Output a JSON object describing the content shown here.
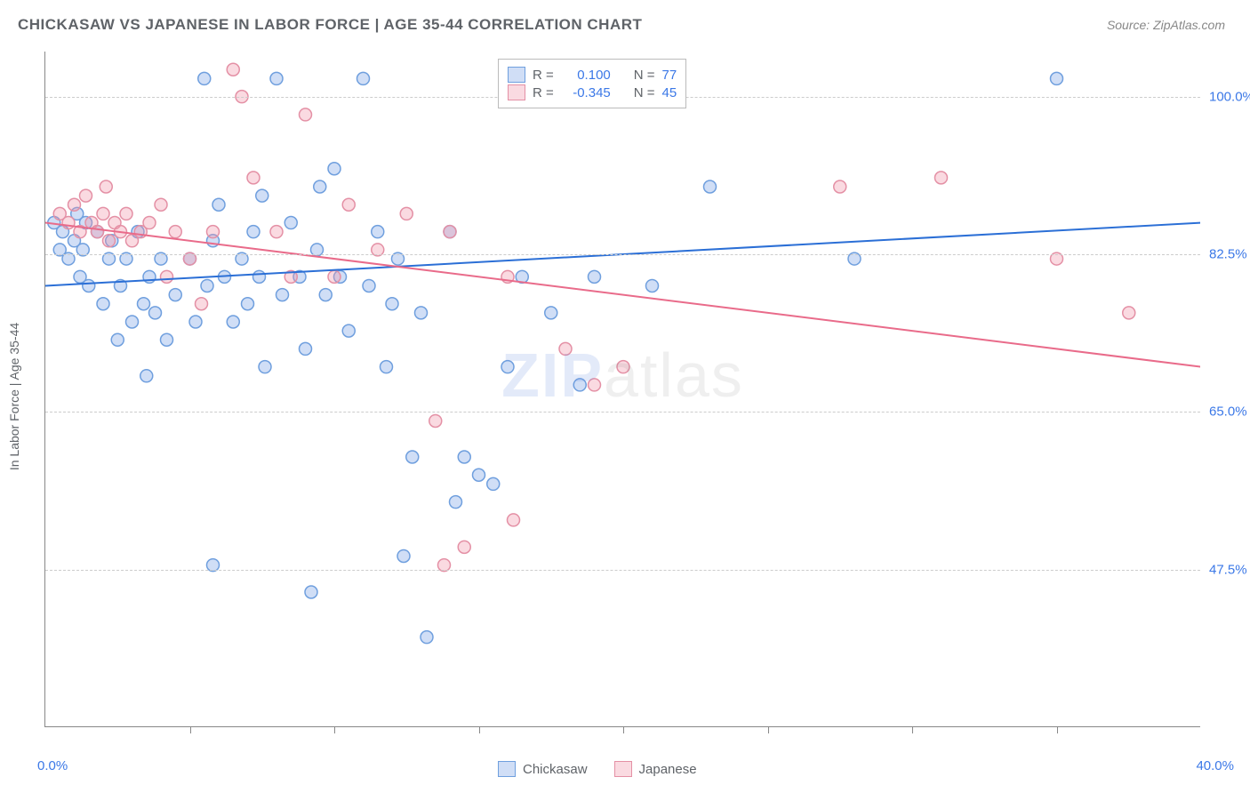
{
  "title": "CHICKASAW VS JAPANESE IN LABOR FORCE | AGE 35-44 CORRELATION CHART",
  "source": "Source: ZipAtlas.com",
  "y_axis_label": "In Labor Force | Age 35-44",
  "watermark_parts": {
    "zip": "ZIP",
    "atlas": "atlas"
  },
  "chart": {
    "type": "scatter",
    "xlim": [
      0.0,
      40.0
    ],
    "ylim": [
      30.0,
      105.0
    ],
    "x_axis_label_left": "0.0%",
    "x_axis_label_right": "40.0%",
    "y_ticks": [
      47.5,
      65.0,
      82.5,
      100.0
    ],
    "y_tick_labels": [
      "47.5%",
      "65.0%",
      "82.5%",
      "100.0%"
    ],
    "x_minor_ticks": [
      5,
      10,
      15,
      20,
      25,
      30,
      35
    ],
    "grid_color": "#cccccc",
    "background_color": "#ffffff",
    "marker_radius": 7,
    "marker_stroke_width": 1.5,
    "line_width": 2,
    "series": [
      {
        "name": "Chickasaw",
        "fill_color": "rgba(120,160,230,0.35)",
        "stroke_color": "#6f9fde",
        "line_color": "#2b6fd6",
        "R": "0.100",
        "N": "77",
        "regression": {
          "x1": 0,
          "y1": 79.0,
          "x2": 40,
          "y2": 86.0
        },
        "points": [
          [
            0.3,
            86
          ],
          [
            0.5,
            83
          ],
          [
            0.6,
            85
          ],
          [
            0.8,
            82
          ],
          [
            1.0,
            84
          ],
          [
            1.1,
            87
          ],
          [
            1.2,
            80
          ],
          [
            1.3,
            83
          ],
          [
            1.4,
            86
          ],
          [
            1.5,
            79
          ],
          [
            1.8,
            85
          ],
          [
            2.0,
            77
          ],
          [
            2.2,
            82
          ],
          [
            2.3,
            84
          ],
          [
            2.5,
            73
          ],
          [
            2.6,
            79
          ],
          [
            2.8,
            82
          ],
          [
            3.0,
            75
          ],
          [
            3.2,
            85
          ],
          [
            3.4,
            77
          ],
          [
            3.5,
            69
          ],
          [
            3.6,
            80
          ],
          [
            3.8,
            76
          ],
          [
            4.0,
            82
          ],
          [
            4.2,
            73
          ],
          [
            4.5,
            78
          ],
          [
            5.0,
            82
          ],
          [
            5.2,
            75
          ],
          [
            5.5,
            102
          ],
          [
            5.6,
            79
          ],
          [
            5.8,
            84
          ],
          [
            6.0,
            88
          ],
          [
            6.2,
            80
          ],
          [
            6.5,
            75
          ],
          [
            6.8,
            82
          ],
          [
            7.0,
            77
          ],
          [
            7.2,
            85
          ],
          [
            7.4,
            80
          ],
          [
            7.5,
            89
          ],
          [
            7.6,
            70
          ],
          [
            8.0,
            102
          ],
          [
            8.2,
            78
          ],
          [
            8.5,
            86
          ],
          [
            8.8,
            80
          ],
          [
            9.0,
            72
          ],
          [
            9.2,
            45
          ],
          [
            9.4,
            83
          ],
          [
            9.5,
            90
          ],
          [
            9.7,
            78
          ],
          [
            10.0,
            92
          ],
          [
            10.2,
            80
          ],
          [
            10.5,
            74
          ],
          [
            11.0,
            102
          ],
          [
            11.2,
            79
          ],
          [
            11.5,
            85
          ],
          [
            11.8,
            70
          ],
          [
            12.0,
            77
          ],
          [
            12.2,
            82
          ],
          [
            12.4,
            49
          ],
          [
            12.7,
            60
          ],
          [
            13.0,
            76
          ],
          [
            13.2,
            40
          ],
          [
            14.0,
            85
          ],
          [
            14.2,
            55
          ],
          [
            14.5,
            60
          ],
          [
            15.0,
            58
          ],
          [
            15.5,
            57
          ],
          [
            16.0,
            70
          ],
          [
            16.5,
            80
          ],
          [
            17.5,
            76
          ],
          [
            18.5,
            68
          ],
          [
            19.0,
            80
          ],
          [
            21.0,
            79
          ],
          [
            23.0,
            90
          ],
          [
            28.0,
            82
          ],
          [
            35.0,
            102
          ],
          [
            5.8,
            48
          ]
        ]
      },
      {
        "name": "Japanese",
        "fill_color": "rgba(240,150,170,0.35)",
        "stroke_color": "#e490a5",
        "line_color": "#e96b8a",
        "R": "-0.345",
        "N": "45",
        "regression": {
          "x1": 0,
          "y1": 86.0,
          "x2": 40,
          "y2": 70.0
        },
        "points": [
          [
            0.5,
            87
          ],
          [
            0.8,
            86
          ],
          [
            1.0,
            88
          ],
          [
            1.2,
            85
          ],
          [
            1.4,
            89
          ],
          [
            1.6,
            86
          ],
          [
            1.8,
            85
          ],
          [
            2.0,
            87
          ],
          [
            2.1,
            90
          ],
          [
            2.2,
            84
          ],
          [
            2.4,
            86
          ],
          [
            2.6,
            85
          ],
          [
            2.8,
            87
          ],
          [
            3.0,
            84
          ],
          [
            3.3,
            85
          ],
          [
            3.6,
            86
          ],
          [
            4.0,
            88
          ],
          [
            4.2,
            80
          ],
          [
            4.5,
            85
          ],
          [
            5.0,
            82
          ],
          [
            5.4,
            77
          ],
          [
            5.8,
            85
          ],
          [
            6.5,
            103
          ],
          [
            6.8,
            100
          ],
          [
            7.2,
            91
          ],
          [
            8.0,
            85
          ],
          [
            8.5,
            80
          ],
          [
            9.0,
            98
          ],
          [
            10.0,
            80
          ],
          [
            10.5,
            88
          ],
          [
            11.5,
            83
          ],
          [
            12.5,
            87
          ],
          [
            13.5,
            64
          ],
          [
            13.8,
            48
          ],
          [
            14.0,
            85
          ],
          [
            14.5,
            50
          ],
          [
            16.0,
            80
          ],
          [
            16.2,
            53
          ],
          [
            18.0,
            72
          ],
          [
            19.0,
            68
          ],
          [
            20.0,
            70
          ],
          [
            27.5,
            90
          ],
          [
            31.0,
            91
          ],
          [
            35.0,
            82
          ],
          [
            37.5,
            76
          ]
        ]
      }
    ],
    "legend_top": {
      "R_label": "R =",
      "N_label": "N =",
      "value_color": "#3b78e7"
    },
    "legend_bottom_labels": [
      "Chickasaw",
      "Japanese"
    ]
  }
}
